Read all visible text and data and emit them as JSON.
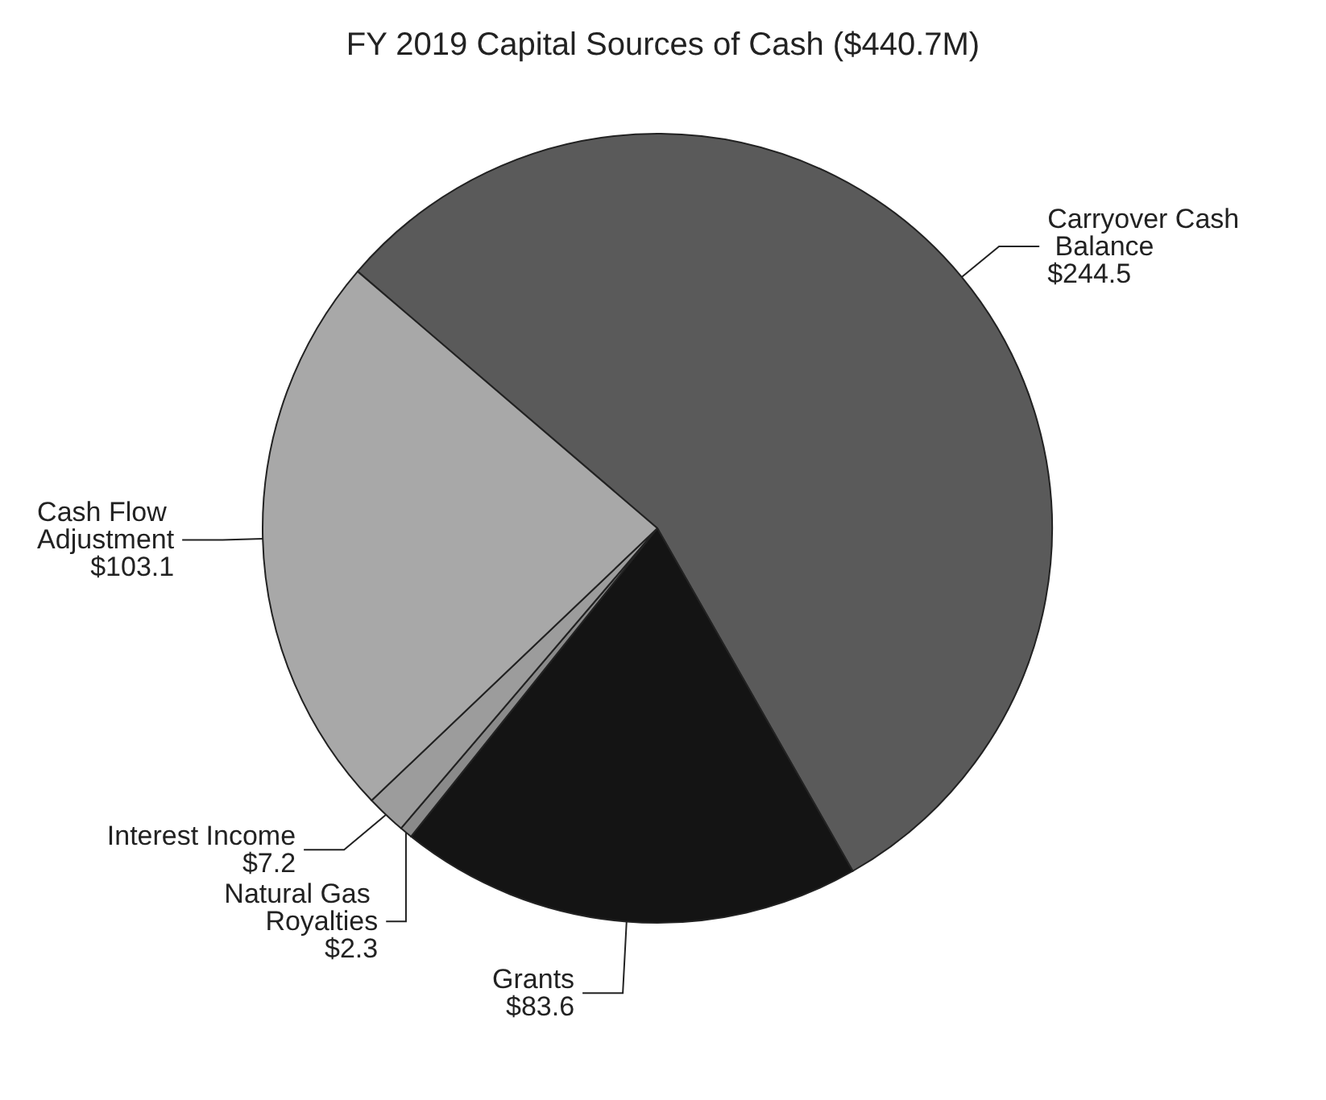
{
  "chart_data": {
    "type": "pie",
    "title": "FY 2019 Capital Sources of Cash ($440.7M)",
    "categories": [
      "Carryover Cash Balance",
      "Grants",
      "Natural Gas Royalties",
      "Interest Income",
      "Cash Flow Adjustment"
    ],
    "values": [
      244.5,
      83.6,
      2.3,
      7.2,
      103.1
    ],
    "value_labels": [
      "$244.5",
      "$83.6",
      "$2.3",
      "$7.2",
      "$103.1"
    ],
    "colors": [
      "#5a5a5a",
      "#141414",
      "#8a8a8a",
      "#9c9c9c",
      "#a8a8a8"
    ],
    "legend": false
  }
}
